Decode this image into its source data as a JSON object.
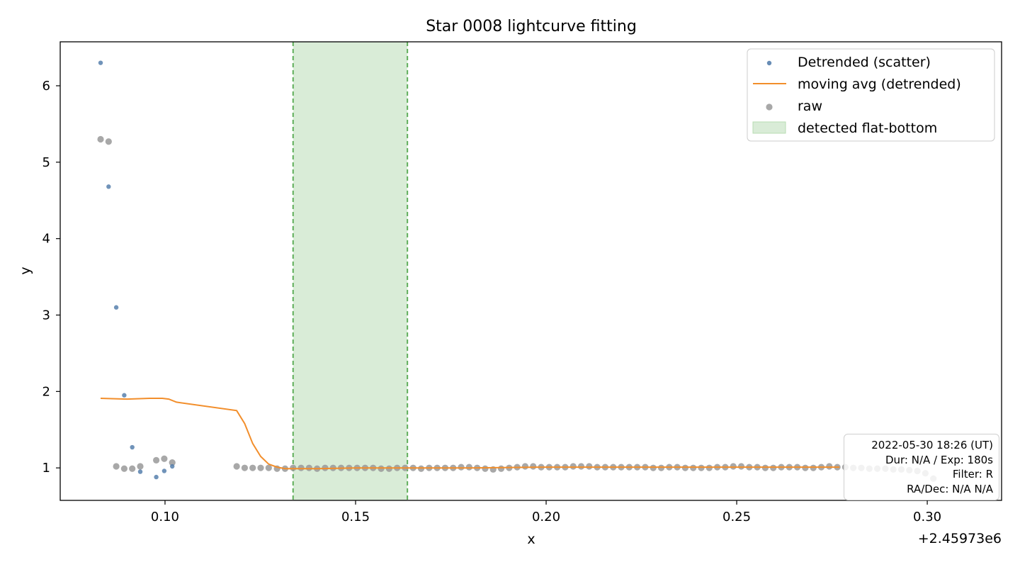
{
  "chart_data": {
    "type": "scatter",
    "title": "Star 0008 lightcurve fitting",
    "xlabel": "x",
    "ylabel": "y",
    "x_offset_label": "+2.45973e6",
    "xlim": [
      0.0725,
      0.3195
    ],
    "ylim": [
      0.575,
      6.575
    ],
    "xticks": [
      0.1,
      0.15,
      0.2,
      0.25,
      0.3
    ],
    "xtick_labels": [
      "0.10",
      "0.15",
      "0.20",
      "0.25",
      "0.30"
    ],
    "yticks": [
      1,
      2,
      3,
      4,
      5,
      6
    ],
    "ytick_labels": [
      "1",
      "2",
      "3",
      "4",
      "5",
      "6"
    ],
    "grid": false,
    "legend_position": "top-right",
    "series": [
      {
        "name": "Detrended (scatter)",
        "kind": "scatter",
        "color": "#4c78a8",
        "x": [
          0.0831,
          0.0852,
          0.0872,
          0.0893,
          0.0914,
          0.0935,
          0.0977,
          0.0998,
          0.1019
        ],
        "y": [
          6.3,
          4.68,
          3.1,
          1.95,
          1.27,
          0.95,
          0.88,
          0.96,
          1.02
        ]
      },
      {
        "name": "raw",
        "kind": "scatter",
        "color": "#999999",
        "x": [
          0.0831,
          0.0852,
          0.0872,
          0.0893,
          0.0914,
          0.0935,
          0.0977,
          0.0998,
          0.1019,
          0.1188,
          0.1209,
          0.123,
          0.1251,
          0.1272,
          0.1294,
          0.1315,
          0.1336,
          0.1357,
          0.1378,
          0.1399,
          0.142,
          0.1441,
          0.1462,
          0.1483,
          0.1504,
          0.1525,
          0.1546,
          0.1567,
          0.1588,
          0.1609,
          0.163,
          0.1651,
          0.1672,
          0.1693,
          0.1714,
          0.1735,
          0.1756,
          0.1777,
          0.1798,
          0.1819,
          0.184,
          0.1861,
          0.1882,
          0.1903,
          0.1924,
          0.1945,
          0.1966,
          0.1987,
          0.2008,
          0.2029,
          0.205,
          0.2071,
          0.2092,
          0.2113,
          0.2134,
          0.2155,
          0.2176,
          0.2197,
          0.2218,
          0.2239,
          0.226,
          0.2281,
          0.2302,
          0.2323,
          0.2344,
          0.2365,
          0.2386,
          0.2407,
          0.2428,
          0.2449,
          0.247,
          0.2491,
          0.2512,
          0.2533,
          0.2554,
          0.2575,
          0.2596,
          0.2617,
          0.2638,
          0.2659,
          0.268,
          0.2701,
          0.2722,
          0.2743,
          0.2764,
          0.2785,
          0.2806,
          0.2827,
          0.2848,
          0.2869,
          0.289,
          0.2911,
          0.2932,
          0.2953,
          0.2974,
          0.2995,
          0.3016
        ],
        "y": [
          5.3,
          5.27,
          1.02,
          0.99,
          0.99,
          1.02,
          1.1,
          1.12,
          1.07,
          1.02,
          1.0,
          1.0,
          1.0,
          1.0,
          0.99,
          0.99,
          1.0,
          1.0,
          1.0,
          0.99,
          1.0,
          1.0,
          1.0,
          1.0,
          1.0,
          1.0,
          1.0,
          0.99,
          0.99,
          1.0,
          1.0,
          1.0,
          0.99,
          1.0,
          1.0,
          1.0,
          1.0,
          1.01,
          1.01,
          1.0,
          0.99,
          0.98,
          0.99,
          1.0,
          1.01,
          1.02,
          1.02,
          1.01,
          1.01,
          1.01,
          1.01,
          1.02,
          1.02,
          1.02,
          1.01,
          1.01,
          1.01,
          1.01,
          1.01,
          1.01,
          1.01,
          1.0,
          1.0,
          1.01,
          1.01,
          1.0,
          1.0,
          1.0,
          1.0,
          1.01,
          1.01,
          1.02,
          1.02,
          1.01,
          1.01,
          1.0,
          1.0,
          1.01,
          1.01,
          1.01,
          1.0,
          1.0,
          1.01,
          1.02,
          1.01,
          1.01,
          1.0,
          1.0,
          0.99,
          0.99,
          0.99,
          0.98,
          0.98,
          0.97,
          0.96,
          0.93,
          0.86
        ]
      },
      {
        "name": "moving avg (detrended)",
        "kind": "line",
        "color": "#f28e2b",
        "x": [
          0.0831,
          0.09,
          0.096,
          0.0993,
          0.101,
          0.103,
          0.1188,
          0.1209,
          0.123,
          0.1251,
          0.1272,
          0.1294,
          0.1315,
          0.14,
          0.15,
          0.16,
          0.18,
          0.2,
          0.22,
          0.24,
          0.26,
          0.277
        ],
        "y": [
          1.91,
          1.9,
          1.91,
          1.91,
          1.9,
          1.86,
          1.75,
          1.58,
          1.32,
          1.15,
          1.05,
          1.01,
          0.99,
          0.99,
          1.0,
          1.0,
          1.0,
          1.01,
          1.01,
          1.01,
          1.01,
          1.01
        ]
      }
    ],
    "highlight_band": {
      "name": "detected flat-bottom",
      "x_start": 0.1336,
      "x_end": 0.1636,
      "fill_color": "#d9ecd7",
      "line_color": "#5fae5a"
    },
    "legend": [
      {
        "label": "Detrended (scatter)",
        "kind": "dot",
        "color": "#4c78a8"
      },
      {
        "label": "moving avg (detrended)",
        "kind": "line",
        "color": "#f28e2b"
      },
      {
        "label": "raw",
        "kind": "dot",
        "color": "#999999"
      },
      {
        "label": "detected flat-bottom",
        "kind": "patch",
        "color": "#d9ecd7"
      }
    ]
  },
  "info": {
    "line1": "2022-05-30 18:26 (UT)",
    "line2": "Dur: N/A / Exp: 180s",
    "line3": "Filter: R",
    "line4": "RA/Dec: N/A N/A"
  }
}
